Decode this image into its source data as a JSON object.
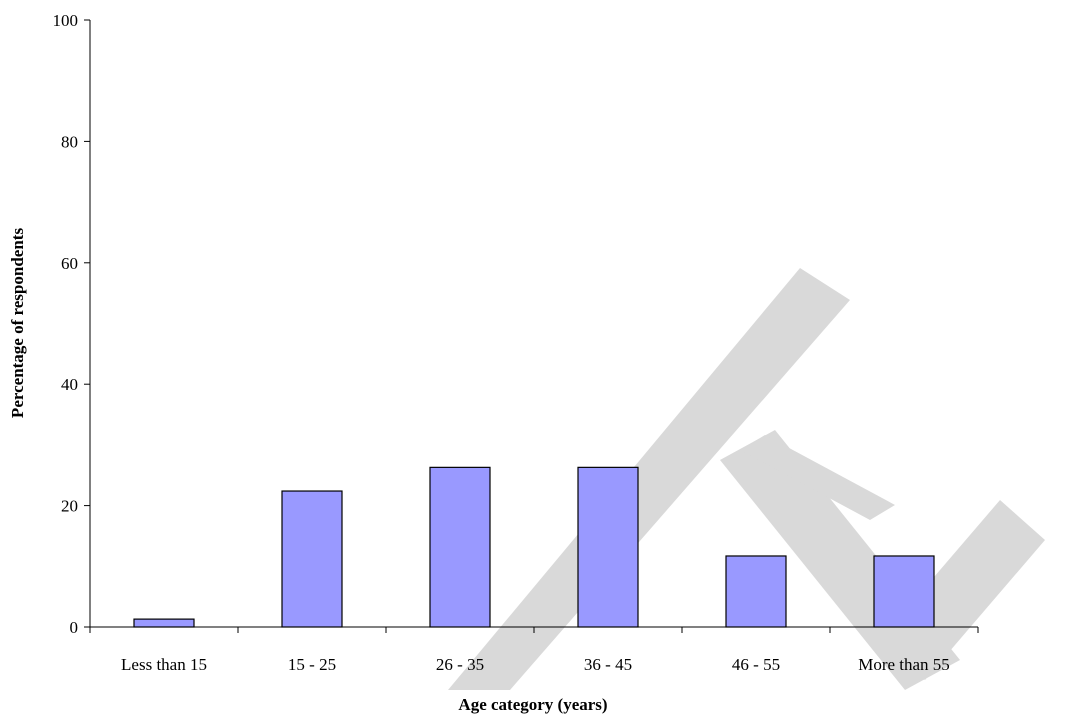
{
  "chart_data": {
    "type": "bar",
    "title": "",
    "xlabel": "Age category (years)",
    "ylabel": "Percentage of respondents",
    "categories": [
      "Less than 15",
      "15 - 25",
      "26 - 35",
      "36 - 45",
      "46 - 55",
      "More than 55"
    ],
    "values": [
      1.3,
      22.4,
      26.3,
      26.3,
      11.7,
      11.7
    ],
    "ylim": [
      0,
      100
    ],
    "yticks": [
      "0",
      "20",
      "40",
      "60",
      "80",
      "100"
    ],
    "grid": false,
    "legend": "none",
    "bar_color": "#9999ff",
    "bar_edge_color": "#000000"
  }
}
